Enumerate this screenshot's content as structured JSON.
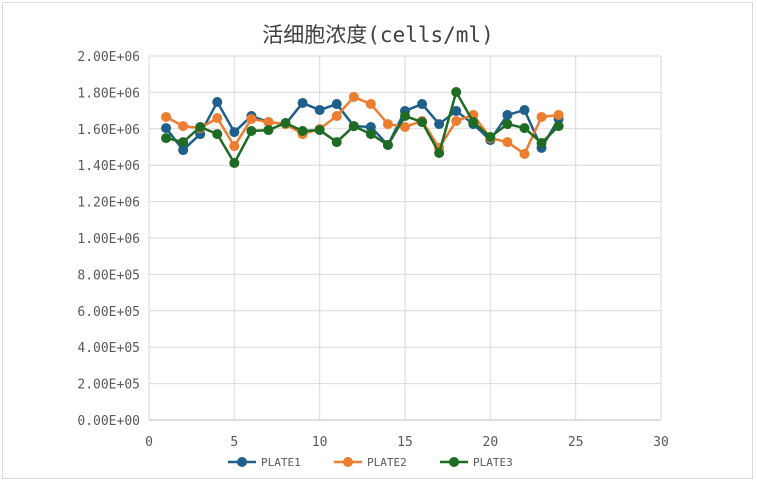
{
  "chart_data": {
    "type": "line",
    "title": "活细胞浓度(cells/ml)",
    "xlabel": "",
    "ylabel": "",
    "xlim": [
      0,
      30
    ],
    "ylim": [
      0,
      2000000
    ],
    "x_ticks": [
      "0",
      "5",
      "10",
      "15",
      "20",
      "25",
      "30"
    ],
    "y_ticks": [
      "0.00E+00",
      "2.00E+05",
      "4.00E+05",
      "6.00E+05",
      "8.00E+05",
      "1.00E+06",
      "1.20E+06",
      "1.40E+06",
      "1.60E+06",
      "1.80E+06",
      "2.00E+06"
    ],
    "grid": true,
    "legend_position": "bottom",
    "x": [
      1,
      2,
      3,
      4,
      5,
      6,
      7,
      8,
      9,
      10,
      11,
      12,
      13,
      14,
      15,
      16,
      17,
      18,
      19,
      20,
      21,
      22,
      23,
      24
    ],
    "series": [
      {
        "name": "PLATE1",
        "color": "#1f5f8b",
        "values": [
          1604000,
          1483000,
          1571000,
          1747000,
          1582000,
          1670000,
          1637000,
          1626000,
          1742000,
          1703000,
          1736000,
          1615000,
          1610000,
          1511000,
          1698000,
          1736000,
          1626000,
          1698000,
          1626000,
          1538000,
          1676000,
          1703000,
          1495000,
          1654000
        ]
      },
      {
        "name": "PLATE2",
        "color": "#ed7d31",
        "values": [
          1665000,
          1615000,
          1604000,
          1659000,
          1505000,
          1654000,
          1637000,
          1626000,
          1571000,
          1599000,
          1670000,
          1775000,
          1736000,
          1626000,
          1610000,
          1643000,
          1495000,
          1643000,
          1676000,
          1549000,
          1527000,
          1462000,
          1665000,
          1676000
        ]
      },
      {
        "name": "PLATE3",
        "color": "#1e6b23",
        "values": [
          1549000,
          1527000,
          1610000,
          1571000,
          1412000,
          1588000,
          1593000,
          1632000,
          1588000,
          1593000,
          1527000,
          1615000,
          1571000,
          1511000,
          1670000,
          1637000,
          1467000,
          1802000,
          1637000,
          1555000,
          1626000,
          1604000,
          1522000,
          1615000
        ]
      }
    ]
  }
}
